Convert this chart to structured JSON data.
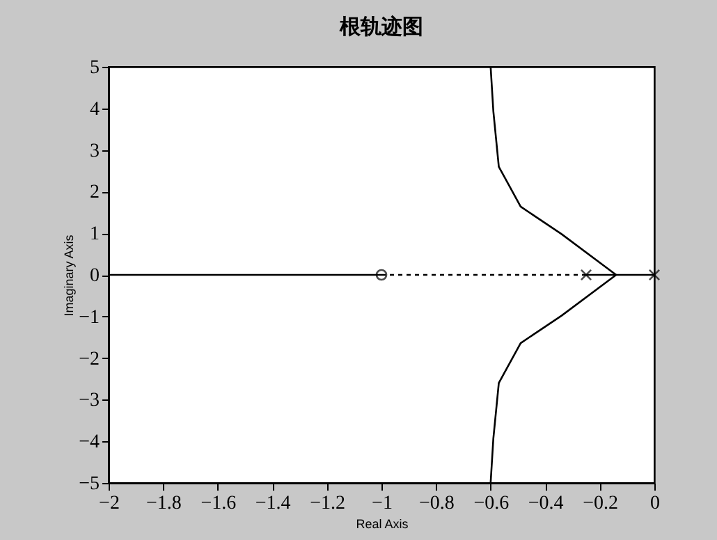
{
  "chart_data": {
    "type": "line",
    "title": "根轨迹图",
    "xlabel": "Real Axis",
    "ylabel": "Imaginary Axis",
    "xlim": [
      -2,
      0
    ],
    "xticks": [
      -2,
      -1.8,
      -1.6,
      -1.4,
      -1.2,
      -1,
      -0.8,
      -0.6,
      -0.4,
      -0.2,
      0
    ],
    "ylim": [
      -5,
      5
    ],
    "yticks": [
      -5,
      -4,
      -3,
      -2,
      -1,
      0,
      1,
      2,
      3,
      4,
      5
    ],
    "series": [
      {
        "type": "line",
        "color": "#000000",
        "line_style": "solid",
        "x": [
          -2,
          -1
        ],
        "values": [
          0,
          0
        ]
      },
      {
        "color": "#000000",
        "line_style": "dashed",
        "x": [
          -1,
          -0.25
        ],
        "values": [
          0,
          0
        ]
      },
      {
        "color": "#000000",
        "line_style": "solid",
        "x": [
          -0.25,
          0
        ],
        "values": [
          0,
          0
        ]
      },
      {
        "color": "#000000",
        "line_style": "solid",
        "x": [
          -0.14,
          -0.34,
          -0.49,
          -0.57,
          -0.59,
          -0.6
        ],
        "values": [
          0,
          0.98,
          1.64,
          2.6,
          3.93,
          5
        ]
      },
      {
        "color": "#000000",
        "line_style": "solid",
        "x": [
          -0.14,
          -0.34,
          -0.49,
          -0.57,
          -0.59,
          -0.6
        ],
        "values": [
          0,
          -0.98,
          -1.64,
          -2.6,
          -3.93,
          -5
        ]
      },
      {
        "type": "scatter",
        "color": "#000000",
        "marker": "cross",
        "x": [
          -0.25,
          0
        ],
        "values": [
          0,
          0
        ]
      },
      {
        "type": "scatter",
        "color": "#000000",
        "marker": "circle",
        "x": [
          -1
        ],
        "values": [
          0
        ]
      }
    ]
  }
}
